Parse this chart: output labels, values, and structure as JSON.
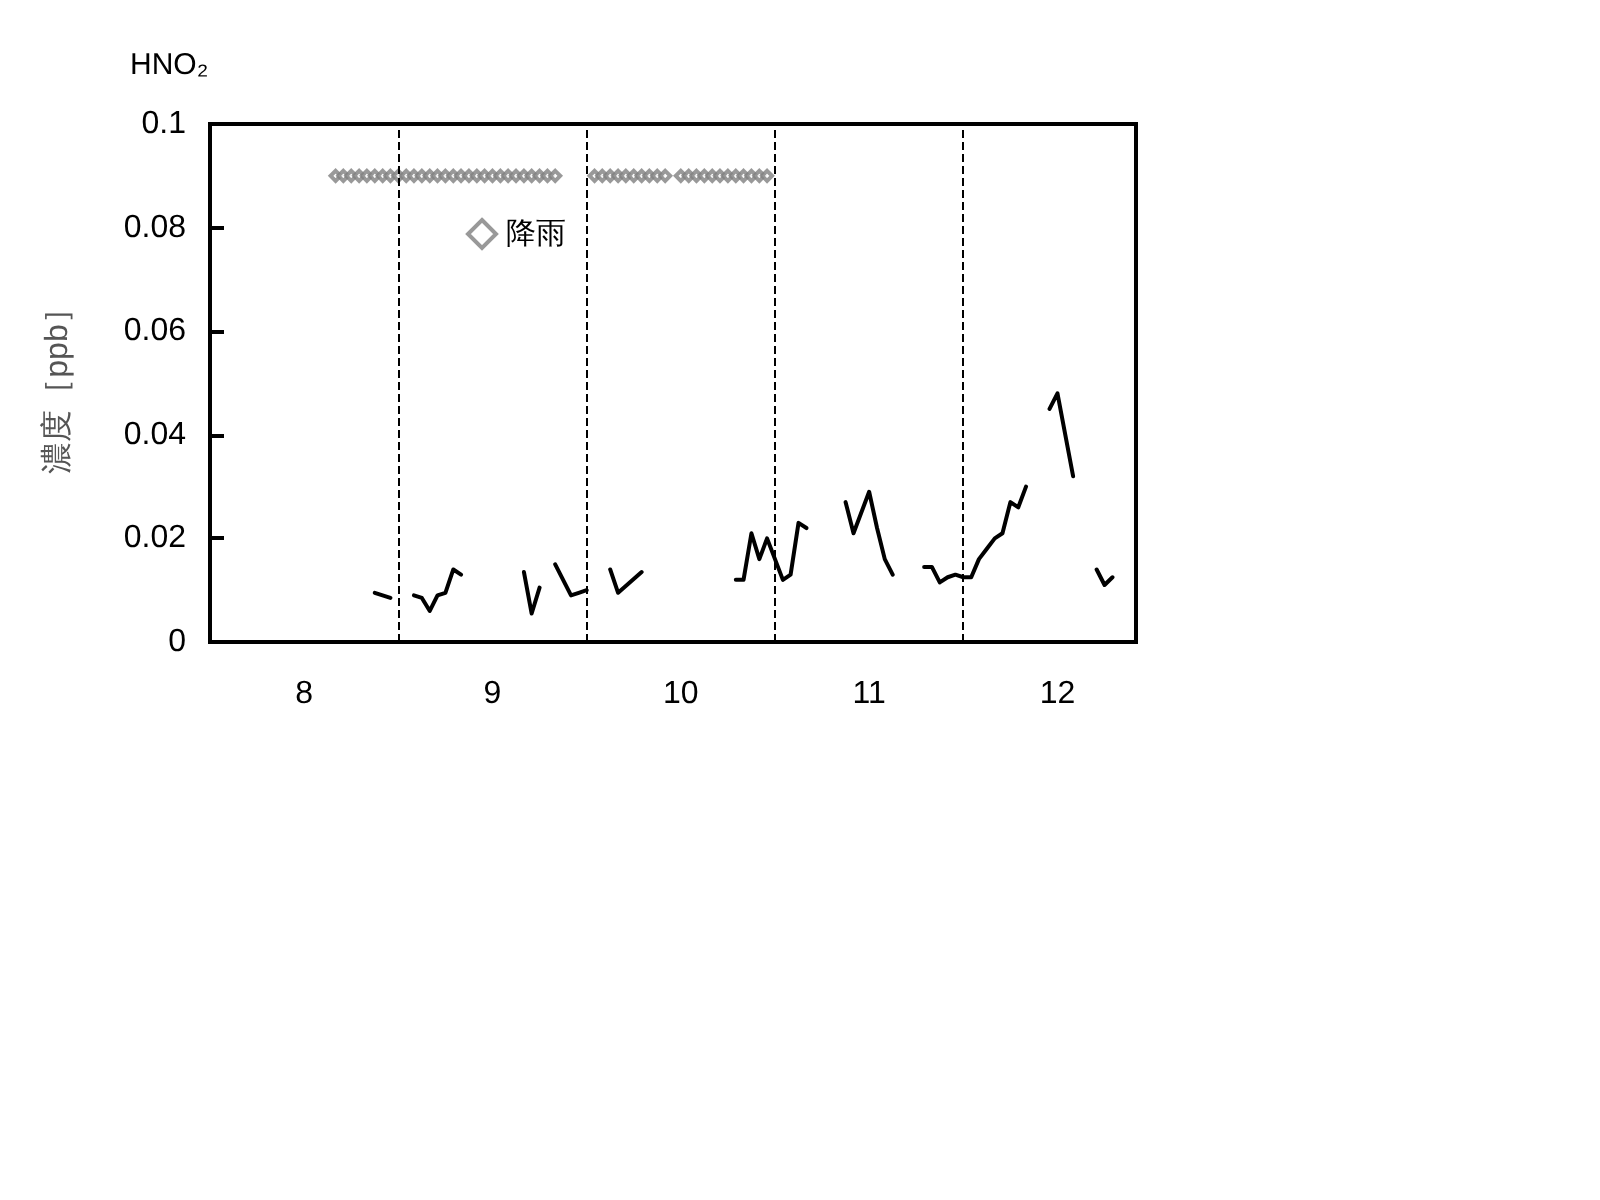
{
  "chart_data": {
    "type": "line",
    "title": "HNO₂",
    "ylabel": "濃度［ppb］",
    "xlim": [
      7.5,
      12.417
    ],
    "xticks": [
      8,
      9,
      10,
      11,
      12
    ],
    "ylim": [
      0,
      0.1
    ],
    "yticks": [
      0,
      0.02,
      0.04,
      0.06,
      0.08,
      0.1
    ],
    "grid": false,
    "legend": "top",
    "ref_lines": [
      {
        "axis": "x",
        "value": 8.5,
        "line_style": "dashed",
        "color": "#000000"
      },
      {
        "axis": "x",
        "value": 9.5,
        "line_style": "dashed",
        "color": "#000000"
      },
      {
        "axis": "x",
        "value": 10.5,
        "line_style": "dashed",
        "color": "#000000"
      },
      {
        "axis": "x",
        "value": 11.5,
        "line_style": "dashed",
        "color": "#000000"
      }
    ],
    "series": [
      {
        "color": "#000000",
        "marker": "none",
        "line_style": "solid",
        "x": [
          8.375,
          8.458,
          8.5,
          8.583,
          8.625,
          8.667,
          8.708,
          8.75,
          8.792,
          8.833,
          8.875,
          9.167,
          9.208,
          9.25,
          9.292,
          9.333,
          9.417,
          9.458,
          9.5,
          9.542,
          9.625,
          9.667,
          9.792,
          9.833,
          10.292,
          10.333,
          10.375,
          10.417,
          10.458,
          10.5,
          10.542,
          10.583,
          10.625,
          10.667,
          10.708,
          10.875,
          10.917,
          11.0,
          11.042,
          11.083,
          11.125,
          11.167,
          11.292,
          11.333,
          11.375,
          11.417,
          11.458,
          11.5,
          11.542,
          11.583,
          11.625,
          11.667,
          11.708,
          11.75,
          11.792,
          11.833,
          11.875,
          11.958,
          12.0,
          12.083,
          12.125,
          12.208,
          12.25,
          12.292
        ],
        "values": [
          0.0095,
          0.0085,
          null,
          0.009,
          0.0085,
          0.006,
          0.009,
          0.0095,
          0.014,
          0.013,
          null,
          0.0135,
          0.0055,
          0.0105,
          null,
          0.015,
          0.009,
          0.0095,
          0.01,
          null,
          0.014,
          0.0095,
          0.0135,
          null,
          0.012,
          0.012,
          0.021,
          0.016,
          0.02,
          0.016,
          0.012,
          0.013,
          0.023,
          0.022,
          null,
          0.027,
          0.021,
          0.029,
          0.022,
          0.016,
          0.013,
          null,
          0.0145,
          0.0145,
          0.0115,
          0.0125,
          0.013,
          0.0125,
          0.0125,
          0.016,
          0.018,
          0.02,
          0.021,
          0.027,
          0.026,
          0.03,
          null,
          0.045,
          0.048,
          0.032,
          null,
          0.014,
          0.011,
          0.0125
        ]
      },
      {
        "type": "scatter",
        "name": "降雨",
        "color": "#808080",
        "marker": "diamond",
        "x": [
          8.167,
          8.208,
          8.25,
          8.292,
          8.333,
          8.375,
          8.417,
          8.458,
          8.5,
          8.542,
          8.583,
          8.625,
          8.667,
          8.708,
          8.75,
          8.792,
          8.833,
          8.875,
          8.917,
          8.958,
          9.0,
          9.042,
          9.083,
          9.125,
          9.167,
          9.208,
          9.25,
          9.292,
          9.333,
          9.542,
          9.583,
          9.625,
          9.667,
          9.708,
          9.75,
          9.792,
          9.833,
          9.875,
          9.917,
          10.0,
          10.042,
          10.083,
          10.125,
          10.167,
          10.208,
          10.25,
          10.292,
          10.333,
          10.375,
          10.417,
          10.458
        ],
        "values": [
          0.09,
          0.09,
          0.09,
          0.09,
          0.09,
          0.09,
          0.09,
          0.09,
          0.09,
          0.09,
          0.09,
          0.09,
          0.09,
          0.09,
          0.09,
          0.09,
          0.09,
          0.09,
          0.09,
          0.09,
          0.09,
          0.09,
          0.09,
          0.09,
          0.09,
          0.09,
          0.09,
          0.09,
          0.09,
          0.09,
          0.09,
          0.09,
          0.09,
          0.09,
          0.09,
          0.09,
          0.09,
          0.09,
          0.09,
          0.09,
          0.09,
          0.09,
          0.09,
          0.09,
          0.09,
          0.09,
          0.09,
          0.09,
          0.09,
          0.09,
          0.09
        ]
      }
    ]
  }
}
